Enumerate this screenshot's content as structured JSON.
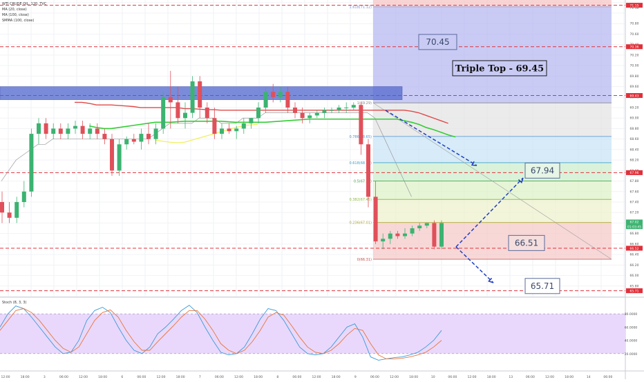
{
  "legend": {
    "symbol": "WTI CRUDE OIL, 120, TVC",
    "ma20": "MA (20, close)",
    "ma100": "MA (100, close)",
    "smma": "SMMA (100, close)",
    "stoch": "Stoch (8, 3, 3)"
  },
  "colors": {
    "up": "#3cb371",
    "down": "#e0505a",
    "fib_top": "#b7b9f2",
    "triple_top_band": "#5a6fd0",
    "arrow": "#1f3fbf",
    "level_line": "#e0303a"
  },
  "chart_data": {
    "type": "candlestick",
    "price_range": [
      65.6,
      71.25
    ],
    "x_time_labels": [
      "12:00",
      "18:00",
      "3",
      "06:00",
      "12:00",
      "18:00",
      "6",
      "06:00",
      "12:00",
      "18:00",
      "7",
      "06:00",
      "12:00",
      "18:00",
      "8",
      "06:00",
      "12:00",
      "18:00",
      "9",
      "06:00",
      "12:00",
      "18:00",
      "10",
      "06:00",
      "12:00",
      "18:00",
      "13",
      "06:00",
      "12:00",
      "18:00",
      "14",
      "06:00"
    ],
    "candles": [
      {
        "o": 67.4,
        "h": 67.6,
        "l": 67.0,
        "c": 67.2
      },
      {
        "o": 67.2,
        "h": 67.4,
        "l": 67.0,
        "c": 67.1
      },
      {
        "o": 67.1,
        "h": 67.5,
        "l": 67.0,
        "c": 67.4
      },
      {
        "o": 67.4,
        "h": 67.8,
        "l": 67.3,
        "c": 67.6
      },
      {
        "o": 67.6,
        "h": 68.8,
        "l": 67.5,
        "c": 68.7
      },
      {
        "o": 68.7,
        "h": 69.0,
        "l": 68.5,
        "c": 68.9
      },
      {
        "o": 68.9,
        "h": 69.0,
        "l": 68.6,
        "c": 68.7
      },
      {
        "o": 68.7,
        "h": 68.9,
        "l": 68.6,
        "c": 68.8
      },
      {
        "o": 68.8,
        "h": 68.9,
        "l": 68.6,
        "c": 68.7
      },
      {
        "o": 68.7,
        "h": 68.9,
        "l": 68.6,
        "c": 68.8
      },
      {
        "o": 68.8,
        "h": 68.95,
        "l": 68.7,
        "c": 68.85
      },
      {
        "o": 68.85,
        "h": 68.95,
        "l": 68.6,
        "c": 68.7
      },
      {
        "o": 68.7,
        "h": 68.9,
        "l": 68.6,
        "c": 68.8
      },
      {
        "o": 68.8,
        "h": 68.9,
        "l": 68.6,
        "c": 68.7
      },
      {
        "o": 68.7,
        "h": 68.8,
        "l": 68.5,
        "c": 68.6
      },
      {
        "o": 68.6,
        "h": 68.7,
        "l": 67.9,
        "c": 68.0
      },
      {
        "o": 68.0,
        "h": 68.6,
        "l": 67.9,
        "c": 68.5
      },
      {
        "o": 68.5,
        "h": 68.65,
        "l": 68.4,
        "c": 68.6
      },
      {
        "o": 68.6,
        "h": 68.7,
        "l": 68.5,
        "c": 68.55
      },
      {
        "o": 68.55,
        "h": 68.8,
        "l": 68.4,
        "c": 68.7
      },
      {
        "o": 68.7,
        "h": 68.9,
        "l": 68.5,
        "c": 68.6
      },
      {
        "o": 68.6,
        "h": 68.9,
        "l": 68.5,
        "c": 68.8
      },
      {
        "o": 68.8,
        "h": 69.5,
        "l": 68.7,
        "c": 69.4
      },
      {
        "o": 69.4,
        "h": 69.9,
        "l": 68.8,
        "c": 69.3
      },
      {
        "o": 69.3,
        "h": 69.6,
        "l": 68.9,
        "c": 69.0
      },
      {
        "o": 69.0,
        "h": 69.3,
        "l": 68.8,
        "c": 69.1
      },
      {
        "o": 69.1,
        "h": 69.8,
        "l": 69.0,
        "c": 69.7
      },
      {
        "o": 69.7,
        "h": 69.8,
        "l": 69.0,
        "c": 69.2
      },
      {
        "o": 69.2,
        "h": 69.3,
        "l": 68.9,
        "c": 69.0
      },
      {
        "o": 69.0,
        "h": 69.2,
        "l": 68.6,
        "c": 68.7
      },
      {
        "o": 68.7,
        "h": 68.9,
        "l": 68.6,
        "c": 68.8
      },
      {
        "o": 68.8,
        "h": 68.9,
        "l": 68.7,
        "c": 68.75
      },
      {
        "o": 68.75,
        "h": 68.85,
        "l": 68.6,
        "c": 68.8
      },
      {
        "o": 68.8,
        "h": 69.0,
        "l": 68.7,
        "c": 68.9
      },
      {
        "o": 68.9,
        "h": 69.0,
        "l": 68.8,
        "c": 69.0
      },
      {
        "o": 69.0,
        "h": 69.3,
        "l": 68.9,
        "c": 69.2
      },
      {
        "o": 69.2,
        "h": 69.6,
        "l": 69.1,
        "c": 69.5
      },
      {
        "o": 69.5,
        "h": 69.65,
        "l": 69.3,
        "c": 69.4
      },
      {
        "o": 69.4,
        "h": 69.6,
        "l": 69.3,
        "c": 69.5
      },
      {
        "o": 69.5,
        "h": 69.6,
        "l": 69.1,
        "c": 69.2
      },
      {
        "o": 69.2,
        "h": 69.3,
        "l": 69.0,
        "c": 69.1
      },
      {
        "o": 69.1,
        "h": 69.2,
        "l": 68.9,
        "c": 69.0
      },
      {
        "o": 69.0,
        "h": 69.1,
        "l": 68.9,
        "c": 69.05
      },
      {
        "o": 69.05,
        "h": 69.15,
        "l": 69.0,
        "c": 69.1
      },
      {
        "o": 69.1,
        "h": 69.2,
        "l": 69.0,
        "c": 69.15
      },
      {
        "o": 69.15,
        "h": 69.2,
        "l": 69.1,
        "c": 69.15
      },
      {
        "o": 69.15,
        "h": 69.25,
        "l": 69.1,
        "c": 69.2
      },
      {
        "o": 69.2,
        "h": 69.3,
        "l": 69.1,
        "c": 69.2
      },
      {
        "o": 69.2,
        "h": 69.3,
        "l": 69.15,
        "c": 69.25
      },
      {
        "o": 69.25,
        "h": 69.3,
        "l": 68.3,
        "c": 68.5
      },
      {
        "o": 68.5,
        "h": 68.6,
        "l": 67.3,
        "c": 67.5
      },
      {
        "o": 67.5,
        "h": 67.8,
        "l": 66.6,
        "c": 66.65
      },
      {
        "o": 66.65,
        "h": 66.8,
        "l": 66.5,
        "c": 66.7
      },
      {
        "o": 66.7,
        "h": 66.85,
        "l": 66.6,
        "c": 66.8
      },
      {
        "o": 66.8,
        "h": 66.85,
        "l": 66.7,
        "c": 66.75
      },
      {
        "o": 66.75,
        "h": 66.9,
        "l": 66.7,
        "c": 66.8
      },
      {
        "o": 66.8,
        "h": 66.95,
        "l": 66.75,
        "c": 66.9
      },
      {
        "o": 66.9,
        "h": 67.0,
        "l": 66.85,
        "c": 66.95
      },
      {
        "o": 66.95,
        "h": 67.0,
        "l": 66.9,
        "c": 67.0
      },
      {
        "o": 67.0,
        "h": 67.05,
        "l": 66.5,
        "c": 66.55
      },
      {
        "o": 66.55,
        "h": 67.05,
        "l": 66.5,
        "c": 67.0
      }
    ],
    "ma_red": [
      69.3,
      69.3,
      69.28,
      69.25,
      69.25,
      69.25,
      69.24,
      69.23,
      69.22,
      69.2,
      69.2,
      69.2,
      69.2,
      69.2,
      69.2,
      69.18,
      69.18,
      69.17,
      69.16,
      69.16,
      69.15,
      69.15,
      69.15,
      69.15,
      69.15,
      69.15,
      69.15,
      69.15,
      69.15,
      69.15,
      69.15,
      69.15,
      69.15,
      69.15,
      69.15,
      69.15,
      69.15,
      69.15,
      69.15,
      69.15,
      69.15,
      69.15,
      69.15,
      69.15,
      69.15,
      69.15,
      69.13,
      69.1,
      69.05,
      69.0,
      68.95,
      68.9
    ],
    "ma_green": [
      68.85,
      68.82,
      68.8,
      68.8,
      68.82,
      68.84,
      68.86,
      68.88,
      68.9,
      68.92,
      68.92,
      68.92,
      68.93,
      68.94,
      68.94,
      68.94,
      68.94,
      68.94,
      68.94,
      68.93,
      68.92,
      68.92,
      68.92,
      68.92,
      68.92,
      68.93,
      68.94,
      68.95,
      68.96,
      68.97,
      68.98,
      68.98,
      68.98,
      68.98,
      68.98,
      68.98,
      68.98,
      68.98,
      68.98,
      68.98,
      68.98,
      68.98,
      68.98,
      68.95,
      68.92,
      68.88,
      68.82,
      68.78,
      68.73,
      68.68,
      68.64
    ],
    "ma_yellow": [
      68.58,
      68.56,
      68.54,
      68.53,
      68.54,
      68.58,
      68.62,
      68.66,
      68.7,
      68.74,
      68.78,
      68.82,
      68.85,
      68.87,
      68.88
    ],
    "ma_gray": [
      67.8,
      68.0,
      68.2,
      68.3,
      68.4,
      68.5,
      68.5,
      68.6,
      68.6,
      68.6,
      68.6,
      68.6,
      68.6,
      68.6,
      68.6,
      68.6,
      68.6,
      68.6,
      68.6,
      68.6,
      68.6,
      68.7,
      68.8,
      68.9,
      68.9,
      68.9,
      68.9,
      69.0,
      69.0,
      69.0,
      68.9,
      68.9,
      68.9,
      69.0,
      69.0,
      69.0,
      69.1,
      69.1,
      69.1,
      69.1,
      69.1,
      69.1,
      69.1,
      69.1,
      69.1,
      69.1,
      69.1,
      69.1,
      69.1,
      69.1,
      69.1,
      69.0,
      68.7,
      68.4,
      68.1,
      67.8,
      67.5
    ],
    "fib_levels": [
      {
        "label": "1.618(71.12)",
        "price": 71.12
      },
      {
        "label": "0.786(68.65)",
        "price": 68.65
      },
      {
        "label": "0.618(68.15)",
        "price": 68.15
      },
      {
        "label": "0.5(67.80)",
        "price": 67.8
      },
      {
        "label": "0.382(67.45)",
        "price": 67.45
      },
      {
        "label": "0.236(67.01)",
        "price": 67.01
      },
      {
        "label": "0(66.31)",
        "price": 66.31
      },
      {
        "label": "1(69.29)",
        "price": 69.29
      }
    ],
    "horizontal_levels": [
      71.15,
      70.36,
      69.43,
      67.96,
      66.52,
      65.71
    ],
    "annotations": [
      {
        "text": "70.45",
        "price": 70.45
      },
      {
        "text": "Triple Top - 69.45",
        "price": 69.95
      },
      {
        "text": "67.94",
        "price": 68.0
      },
      {
        "text": "66.51",
        "price": 66.62
      },
      {
        "text": "65.71",
        "price": 65.8
      }
    ],
    "axis_ticks": [
      "71.10",
      "70.80",
      "70.60",
      "70.40",
      "70.20",
      "70.00",
      "69.80",
      "69.60",
      "69.40",
      "69.20",
      "69.00",
      "68.80",
      "68.60",
      "68.40",
      "68.20",
      "68.00",
      "67.80",
      "67.60",
      "67.40",
      "67.20",
      "67.00",
      "66.80",
      "66.60",
      "66.40",
      "66.20",
      "66.00",
      "65.80"
    ],
    "axis_badges": [
      {
        "text": "71.15",
        "price": 71.15,
        "color": "#e0303a"
      },
      {
        "text": "70.36",
        "price": 70.36,
        "color": "#e0303a"
      },
      {
        "text": "69.43",
        "price": 69.43,
        "color": "#e0303a"
      },
      {
        "text": "67.96",
        "price": 67.96,
        "color": "#e0303a"
      },
      {
        "text": "67.02",
        "price": 67.02,
        "color": "#3cb371"
      },
      {
        "text": "01:03:45",
        "price": 66.93,
        "color": "#3cb371"
      },
      {
        "text": "66.52",
        "price": 66.52,
        "color": "#e0303a"
      },
      {
        "text": "65.71",
        "price": 65.71,
        "color": "#e0303a"
      }
    ],
    "stoch": {
      "range": [
        0,
        100
      ],
      "ticks": [
        "80.0000",
        "60.0000",
        "40.0000",
        "20.0000"
      ],
      "k": [
        60,
        80,
        92,
        88,
        75,
        60,
        45,
        30,
        20,
        22,
        40,
        70,
        85,
        90,
        82,
        60,
        40,
        25,
        20,
        30,
        50,
        60,
        72,
        85,
        93,
        82,
        60,
        40,
        22,
        18,
        20,
        30,
        50,
        72,
        88,
        85,
        70,
        50,
        30,
        20,
        18,
        20,
        30,
        45,
        60,
        65,
        45,
        15,
        10,
        12,
        14,
        15,
        18,
        22,
        30,
        40,
        55
      ],
      "d": [
        55,
        70,
        85,
        88,
        82,
        70,
        55,
        40,
        28,
        22,
        30,
        50,
        70,
        82,
        86,
        75,
        55,
        38,
        25,
        25,
        38,
        50,
        62,
        75,
        85,
        85,
        72,
        55,
        35,
        25,
        20,
        25,
        38,
        55,
        75,
        82,
        78,
        62,
        45,
        30,
        22,
        20,
        25,
        35,
        48,
        58,
        55,
        35,
        18,
        12,
        12,
        13,
        15,
        18,
        22,
        30,
        40
      ]
    }
  }
}
